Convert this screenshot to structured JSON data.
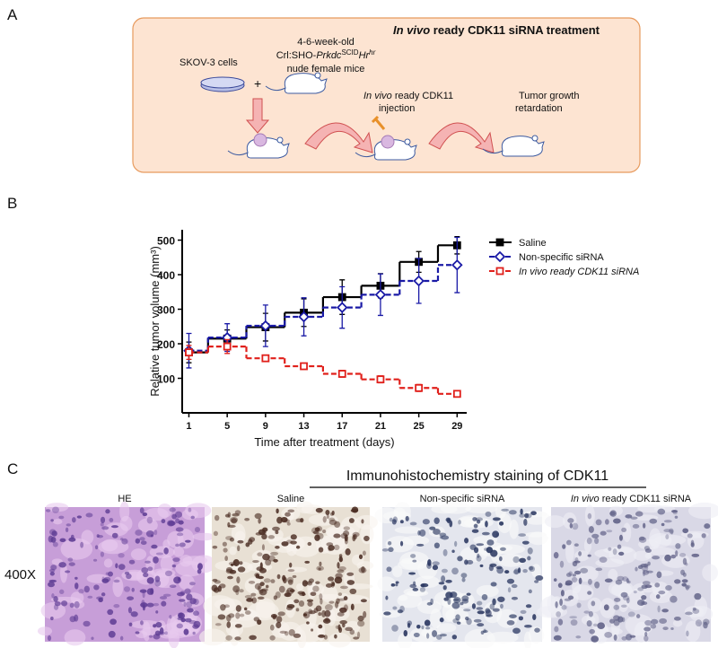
{
  "panel_a": {
    "label": "A",
    "title_italic": "In vivo",
    "title_rest": " ready CDK11 siRNA treatment",
    "cells": "SKOV-3 cells",
    "plus": "+",
    "mice_age": "4-6-week-old",
    "strain": {
      "prefix": "Crl:SHO-",
      "gene": "Prkdc",
      "gene_sup": "SCID",
      "gene2": "Hr",
      "gene2_sup": "hr"
    },
    "mice_desc": "nude female mice",
    "injection_italic": "In vivo",
    "injection_rest": " ready CDK11",
    "injection_line2": "injection",
    "result_line1": "Tumor growth",
    "result_line2": "retardation"
  },
  "chart_data": {
    "type": "line",
    "label": "B",
    "step": "mid",
    "x_label": "Time after treatment (days)",
    "y_label": "Relative tumor volume (mm³)",
    "x": [
      1,
      5,
      9,
      13,
      17,
      21,
      25,
      29
    ],
    "series": [
      {
        "name": "Saline",
        "color": "#000000",
        "marker": "square",
        "dash": false,
        "values": [
          175,
          215,
          248,
          290,
          335,
          368,
          437,
          485
        ],
        "errors": [
          30,
          25,
          40,
          40,
          50,
          35,
          30,
          25
        ]
      },
      {
        "name": "Non-specific siRNA",
        "color": "#1a1aa6",
        "marker": "diamond-open",
        "dash": true,
        "values": [
          180,
          218,
          252,
          278,
          305,
          342,
          382,
          428
        ],
        "errors": [
          50,
          40,
          60,
          55,
          60,
          60,
          65,
          80
        ]
      },
      {
        "name": "In vivo ready CDK11 siRNA",
        "color": "#e0201b",
        "marker": "square-open",
        "dash": true,
        "values": [
          175,
          192,
          158,
          135,
          113,
          97,
          72,
          55
        ],
        "errors": [
          20,
          20,
          5,
          5,
          10,
          10,
          10,
          5
        ]
      }
    ],
    "xlim": [
      0.3,
      30
    ],
    "ylim": [
      0,
      530
    ],
    "xticks": [
      1,
      5,
      9,
      13,
      17,
      21,
      25,
      29
    ],
    "yticks": [
      100,
      200,
      300,
      400,
      500
    ],
    "legend": "right"
  },
  "panel_c": {
    "label": "C",
    "header": "Immunohistochemistry staining of CDK11",
    "magnification": "400X",
    "images": [
      {
        "label": "HE"
      },
      {
        "label": "Saline"
      },
      {
        "label": "Non-specific siRNA"
      },
      {
        "label_italic": "In vivo",
        "label_rest": " ready CDK11 siRNA"
      }
    ]
  }
}
